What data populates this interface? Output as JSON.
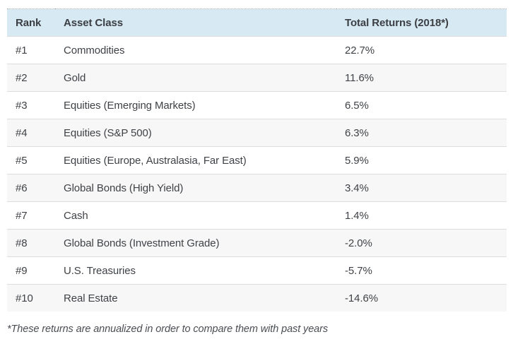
{
  "chart_data": {
    "type": "table",
    "columns": [
      "Rank",
      "Asset Class",
      "Total Returns (2018*)"
    ],
    "rows": [
      [
        "#1",
        "Commodities",
        "22.7%"
      ],
      [
        "#2",
        "Gold",
        "11.6%"
      ],
      [
        "#3",
        "Equities (Emerging Markets)",
        "6.5%"
      ],
      [
        "#4",
        "Equities (S&P 500)",
        "6.3%"
      ],
      [
        "#5",
        "Equities (Europe, Australasia, Far East)",
        "5.9%"
      ],
      [
        "#6",
        "Global Bonds (High Yield)",
        "3.4%"
      ],
      [
        "#7",
        "Cash",
        "1.4%"
      ],
      [
        "#8",
        "Global Bonds (Investment Grade)",
        "-2.0%"
      ],
      [
        "#9",
        "U.S. Treasuries",
        "-5.7%"
      ],
      [
        "#10",
        "Real Estate",
        "-14.6%"
      ]
    ],
    "values_numeric": [
      22.7,
      11.6,
      6.5,
      6.3,
      5.9,
      3.4,
      1.4,
      -2.0,
      -5.7,
      -14.6
    ],
    "footnote": "*These returns are annualized in order to compare them with past years"
  },
  "table": {
    "headers": {
      "rank": "Rank",
      "asset_class": "Asset Class",
      "total_returns": "Total Returns (2018*)"
    },
    "rows": [
      {
        "rank": "#1",
        "asset_class": "Commodities",
        "total_return": "22.7%"
      },
      {
        "rank": "#2",
        "asset_class": "Gold",
        "total_return": "11.6%"
      },
      {
        "rank": "#3",
        "asset_class": "Equities (Emerging Markets)",
        "total_return": "6.5%"
      },
      {
        "rank": "#4",
        "asset_class": "Equities (S&P 500)",
        "total_return": "6.3%"
      },
      {
        "rank": "#5",
        "asset_class": "Equities (Europe, Australasia, Far East)",
        "total_return": "5.9%"
      },
      {
        "rank": "#6",
        "asset_class": "Global Bonds (High Yield)",
        "total_return": "3.4%"
      },
      {
        "rank": "#7",
        "asset_class": "Cash",
        "total_return": "1.4%"
      },
      {
        "rank": "#8",
        "asset_class": "Global Bonds (Investment Grade)",
        "total_return": "-2.0%"
      },
      {
        "rank": "#9",
        "asset_class": "U.S. Treasuries",
        "total_return": "-5.7%"
      },
      {
        "rank": "#10",
        "asset_class": "Real Estate",
        "total_return": "-14.6%"
      }
    ]
  },
  "footnote": "*These returns are annualized in order to compare them with past years",
  "colors": {
    "header_bg": "#d7eaf4",
    "alt_row_bg": "#f7f7f7",
    "row_border": "#dddddd",
    "top_border_dotted": "#a3abb1",
    "body_text": "#3f4246",
    "footnote_text": "#4a4d52"
  }
}
